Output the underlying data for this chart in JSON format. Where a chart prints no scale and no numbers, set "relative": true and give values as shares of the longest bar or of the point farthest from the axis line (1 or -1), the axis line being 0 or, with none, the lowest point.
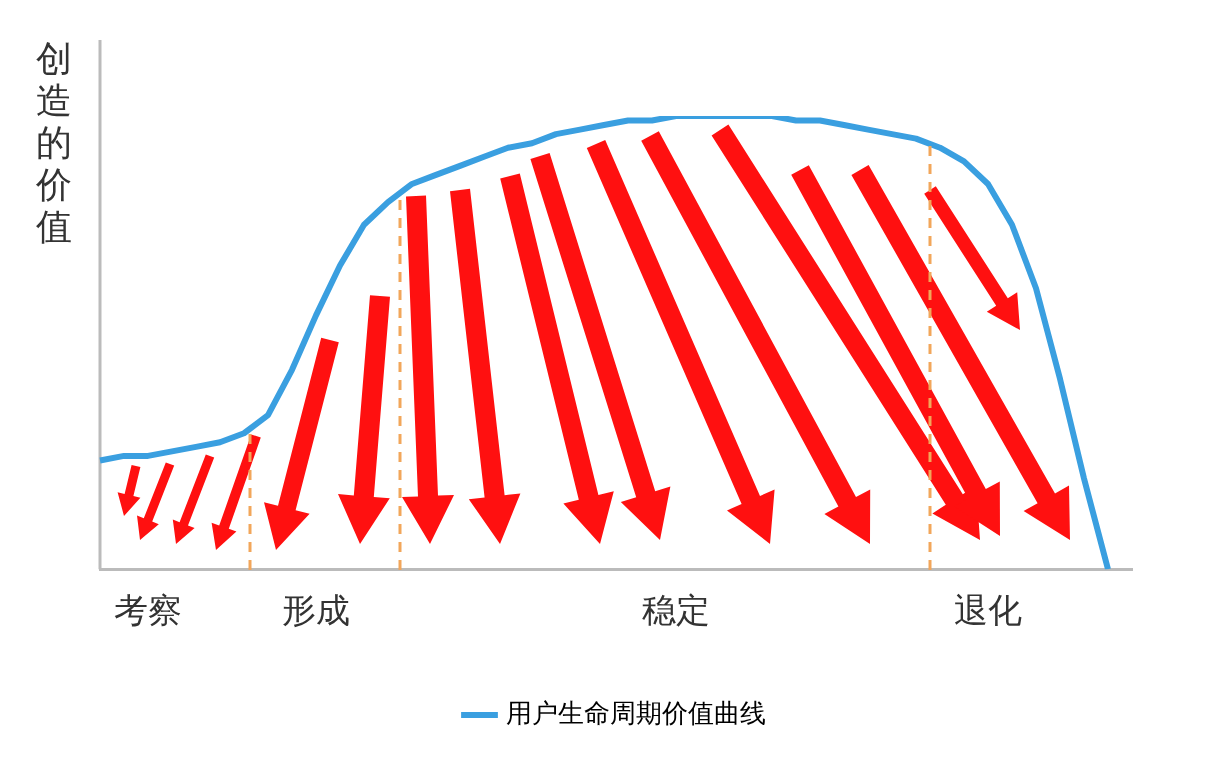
{
  "chart_data": {
    "type": "line",
    "ylabel": "创造的价值",
    "relative": true,
    "tick_labels": "x",
    "legend": "bottom",
    "marker": "none",
    "categories": [
      null,
      null,
      "考察",
      null,
      null,
      null,
      null,
      null,
      null,
      "形成",
      null,
      null,
      null,
      null,
      null,
      null,
      null,
      null,
      null,
      null,
      null,
      null,
      null,
      null,
      "稳定",
      null,
      null,
      null,
      null,
      null,
      null,
      null,
      null,
      null,
      null,
      null,
      null,
      "退化",
      null,
      null,
      null,
      null,
      null,
      null
    ],
    "series": [
      {
        "name": "用户生命周期价值曲线",
        "color": "#3a9fe0",
        "values": [
          0.24,
          0.25,
          0.25,
          0.26,
          0.27,
          0.28,
          0.3,
          0.34,
          0.44,
          0.56,
          0.67,
          0.76,
          0.81,
          0.85,
          0.87,
          0.89,
          0.91,
          0.93,
          0.94,
          0.96,
          0.97,
          0.98,
          0.99,
          0.99,
          1,
          1,
          1,
          1,
          1,
          0.99,
          0.99,
          0.98,
          0.97,
          0.96,
          0.95,
          0.93,
          0.9,
          0.85,
          0.76,
          0.62,
          0.42,
          0.2,
          0,
          null
        ]
      }
    ]
  }
}
